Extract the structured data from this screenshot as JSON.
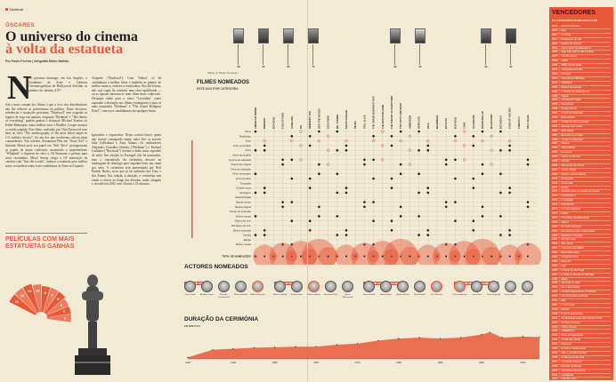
{
  "section": "Outlook",
  "kicker": "ÓSCARES",
  "headline": {
    "line1": "O universo do cinema",
    "line2": "à volta da estatueta"
  },
  "byline": "Por Paulo Pereira | Infografia Mário Malhão",
  "article": {
    "dropcap": "N",
    "col1": "No próximo domingo, em Los Angeles, a Academia de Artes e Ciências Cinematográficas de Hollywood distribui os prémios do cinema. A 87ª",
    "col1b": "Até o mais comum dos filmes é que o foco dos distribuidores não lhe reflectir as preferências do público. Entre favoritos, referências e mutações próximas, \"Boyhood\" tem ocupado os lugares de topo nas apostas, enquanto \"Birdman\" e \"The theory of everything\" podem ganhar a distinção Michael Keaton ou Eddie Redmayne como melhor actor e Bradley Cooper arranca a corrida seguida. Este filme, realizado por Clint Eastwood com base no livro \"The autobiography of the most lethal sniper in U.S military history\", foi um dos que receberam críticas mais contundentes. Nos actrizes, Rosamund Pike em \"Gone Girl\" e Julianne Moore pelo seu papel em \"Still Alice\" protagonizam os papéis de maior confronto, assumindo o surpreendente \"Whiplash\" a hipótese de valer a J.K.Simmons o prémio para actor secundário. Meryl Streep chega à 19ª nomeação da carreira com \"Into the woods\", embora a estatueta para melhor actriz secundária tenha forte candidatura de Patricia Arquette.",
    "col2": "Arquette (\"Boyhood\"). Com \"Selma\" só há candidatura a melhor filme e também ao prémio de melhor música, embora a realizadora, Ava DuVernay, não seja capaz de construir uma obra equilibrada — ou as apostas baseiam-se num filme mais conhecido. Destaque ainda para o russo \"Leviathan\" como aspirante a distinção nos filmes estrangeiros e para os mais nomeados \"Birdman\" e \"The Grand Budapest Hotel\", com nove candidaturas em qualquer título.",
    "col3": "Ignorados e esquecidos. Nesta corrida houve quem não tivesse conseguido entrar, entre eles os actores Jake Gyllenhaal e Amy Adams. Os realizadores Alejandro González Iñárritu (\"Birdman\") e Richard Linklater (\"Boyhood\") travam o duelo mais esperado da noite. Em relação ao Portugal, não há nomeados, mas a transmissão da cerimónia decorre na madrugada de domingo para segunda-feira, em canal por cabo. A cerimónia será apresentada por Neil Patrick Harris, actor que já foi anfitrião dos Tony e dos Emmy. Em relação à duração, a cerimónia tem vindo a crescer ao longo das décadas, tendo atingido o recorde em 2002 com 4 horas e 23 minutos."
  },
  "box_title": "PELÍCULAS COM MAIS ESTATUETAS GANHAS",
  "statue_films": [
    {
      "label": "11"
    },
    {
      "label": "11"
    },
    {
      "label": "11"
    },
    {
      "label": "10"
    },
    {
      "label": "9"
    },
    {
      "label": "9"
    },
    {
      "label": "9"
    },
    {
      "label": "8"
    },
    {
      "label": "8"
    },
    {
      "label": "8"
    }
  ],
  "chart_title": "FILMES NOMEADOS",
  "chart_subtitle": "ESTE ANO POR CATEGORIA",
  "rating_label": "Rating no Rotten Tomatoes",
  "posters": [
    {
      "score": "98"
    },
    {
      "score": "92"
    },
    {
      "score": "80"
    },
    {
      "score": "72"
    },
    {
      "score": "99"
    },
    {
      "score": "92"
    },
    {
      "score": "99"
    },
    {
      "score": "92"
    }
  ],
  "film_columns": [
    "AMERICAN SNIPER",
    "BIRDMAN",
    "BOYHOOD",
    "FOXCATCHER",
    "GONE GIRL",
    "IDA",
    "INHERENT VICE",
    "INTO THE WOODS",
    "LEVIATHAN",
    "MR. TURNER",
    "NIGHTCRAWLER",
    "SELMA",
    "STILL ALICE",
    "THE GRAND BUDAPEST HOTEL",
    "THE IMITATION GAME",
    "THE THEORY OF EVERYTHING",
    "TWO DAYS, ONE NIGHT",
    "UNBROKEN",
    "WHIPLASH",
    "WILD",
    "BEGINNERS",
    "BIG EYES",
    "BOYHOOD",
    "CAKE",
    "GUARDIANS",
    "INTERSTELLAR",
    "MALEFICENT",
    "BIG HERO 6",
    "SONG OF THE SEA",
    "TIMBUKTU",
    "WILD TALES"
  ],
  "categories": [
    "Filme",
    "Realizador",
    "Actor",
    "Actor secundário",
    "Actriz",
    "Actriz secundária",
    "Argumento adaptado",
    "Argumento original",
    "Filme de animação",
    "Filme estrangeiro",
    "Documentário",
    "Fotografia",
    "Guarda-roupa",
    "Montagem",
    "Caracterização",
    "Banda sonora",
    "Música original",
    "Design de produção",
    "Efeitos visuais",
    "Mistura de som",
    "Montagem de som",
    "Efeitos especiais",
    "Canção",
    "Edição",
    "Efeitos visuais"
  ],
  "total_label": "TOTAL DE NOMEAÇÕES",
  "right": {
    "title": "VENCEDORES",
    "subtitle": "DA CATEGORIA DE MELHOR FILME",
    "items": [
      "2014 — 12 Anos Escravo",
      "2013 — Argo",
      "2012 — O Artista",
      "2011 — O Discurso do Rei",
      "2010 — Estado de Guerra",
      "2009 — Quem Quer Ser Bilionário?",
      "2008 — Este País Não É Para Velhos",
      "2007 — The Departed",
      "2006 — Crash",
      "2005 — Million Dollar Baby",
      "2004 — O Regresso do Rei",
      "2003 — Chicago",
      "2002 — Uma Mente Brilhante",
      "2001 — Gladiador",
      "2000 — Beleza Americana",
      "1999 — A Paixão de Shakespeare",
      "1998 — Titanic",
      "1997 — O Paciente Inglês",
      "1996 — Braveheart",
      "1995 — Forrest Gump",
      "1994 — A Lista de Schindler",
      "1993 — Imperdoável",
      "1992 — O Silêncio dos Inocentes",
      "1991 — Danças com Lobos",
      "1990 — Miss Daisy",
      "1989 — Encontro de Irmãos",
      "1988 — O Último Imperador",
      "1987 — Platoon",
      "1986 — África Minha",
      "1985 — Amadeus",
      "1984 — Laços de Ternura",
      "1983 — Gandhi",
      "1982 — Momentos de Glória",
      "1981 — Gente Vulgar",
      "1980 — Kramer contra Kramer",
      "1979 — O Caçador",
      "1978 — Annie Hall",
      "1977 — Rocky",
      "1976 — Voando sobre um Ninho de Cucos",
      "1975 — O Padrinho II",
      "1974 — A Golpada",
      "1973 — O Padrinho",
      "1972 — Os Incorruptíveis",
      "1971 — Patton",
      "1970 — O Cowboy da Meia-Noite",
      "1969 — Oliver!",
      "1968 — No Calor da Noite",
      "1967 — Um Homem para a Eternidade",
      "1966 — Música no Coração",
      "1965 — My Fair Lady",
      "1964 — Tom Jones",
      "1963 — Lawrence da Arábia",
      "1962 — West Side Story",
      "1961 — O Apartamento",
      "1960 — Ben-Hur",
      "1959 — Gigi",
      "1958 — A Ponte do Rio Kwai",
      "1957 — A Volta ao Mundo em 80 Dias",
      "1956 — Marty",
      "1955 — Há Lodo no Cais",
      "1954 — Até à Eternidade",
      "1953 — O Maior Espectáculo do Mundo",
      "1952 — Um Americano em Paris",
      "1951 — Eva",
      "1950 — A Corrupção",
      "1949 — Hamlet",
      "1948 — A Luz É para Todos",
      "1947 — Os Melhores Anos das Nossas Vidas",
      "1946 — Farrapo Humano",
      "1945 — O Bom Pastor",
      "1944 — Casablanca",
      "1943 — Rosa de Esperança",
      "1942 — O Vale Era Verde",
      "1941 — Rebecca",
      "1940 — E Tudo o Vento Levou",
      "1939 — Não o Levarás Contigo",
      "1938 — A Vida de Emile Zola",
      "1937 — O Grande Ziegfeld",
      "1936 — Revolta na Bounty",
      "1935 — Uma Noite Aconteceu",
      "1934 — Cavalgada",
      "1933 — Grande Hotel",
      "1932 — Cimarron",
      "1931 — A Oeste Nada de Novo",
      "1930 — A Melodia da Broadway",
      "1929 — Asas"
    ]
  },
  "actors_title": "ACTORES NOMEADOS",
  "actor_groups": [
    {
      "title": "MELHOR ACTOR",
      "names": [
        "Steve Carell",
        "Bradley Cooper",
        "Benedict Cumberbatch",
        "Michael Keaton",
        "Eddie Redmayne"
      ],
      "winner_index": 4
    },
    {
      "title": "MELHOR ACTRIZ",
      "names": [
        "Marion Cotillard",
        "Felicity Jones",
        "Julianne Moore",
        "Rosamund Pike",
        "Reese Witherspoon"
      ],
      "winner_index": 2
    },
    {
      "title": "MELHOR ACTOR SECUNDÁRIO",
      "names": [
        "Robert Duvall",
        "Ethan Hawke",
        "Edward Norton",
        "Mark Ruffalo",
        "J.K. Simmons"
      ],
      "winner_index": 4
    },
    {
      "title": "MELHOR ACTRIZ SECUNDÁRIA",
      "names": [
        "Patricia Arquette",
        "Laura Dern",
        "Keira Knightley",
        "Emma Stone",
        "Meryl Streep"
      ],
      "winner_index": 0
    }
  ],
  "duration_title": "DURAÇÃO DA CERIMÓNIA",
  "duration_sub": "EM MINUTOS",
  "chart_data": {
    "type": "area",
    "title": "DURAÇÃO DA CERIMÓNIA",
    "ylabel": "EM MINUTOS",
    "x": [
      1929,
      1935,
      1940,
      1945,
      1950,
      1955,
      1960,
      1965,
      1970,
      1975,
      1980,
      1985,
      1990,
      1995,
      2000,
      2002,
      2005,
      2010,
      2014
    ],
    "values": [
      15,
      90,
      100,
      110,
      115,
      120,
      120,
      140,
      150,
      180,
      200,
      210,
      200,
      210,
      240,
      263,
      210,
      220,
      214
    ],
    "x_ticks": [
      "1929",
      "1940",
      "1950",
      "1960",
      "1970",
      "1980",
      "1990",
      "2000",
      "2010"
    ],
    "ylim": [
      0,
      280
    ],
    "color": "#e8593a"
  },
  "colors": {
    "accent": "#e8593a",
    "background": "#f3ead6"
  }
}
